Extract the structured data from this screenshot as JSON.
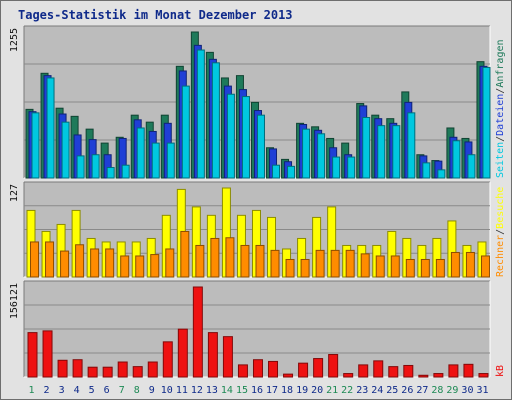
{
  "chart_data": {
    "type": "bar",
    "title": "Tages-Statistik im Monat Dezember 2013",
    "categories": [
      "1",
      "2",
      "3",
      "4",
      "5",
      "6",
      "7",
      "8",
      "9",
      "10",
      "11",
      "12",
      "13",
      "14",
      "15",
      "16",
      "17",
      "18",
      "19",
      "20",
      "21",
      "22",
      "23",
      "24",
      "25",
      "26",
      "27",
      "28",
      "29",
      "30",
      "31"
    ],
    "weekend_days": [
      "1",
      "7",
      "8",
      "14",
      "15",
      "21",
      "22",
      "28",
      "29"
    ],
    "colors": {
      "anfragen": "#1e7a5a",
      "dateien": "#1f3fd6",
      "seiten": "#00c8e0",
      "besuche": "#ffff00",
      "rechner": "#ff8c00",
      "kb": "#ee1111",
      "weekend_label": "#1e8a55",
      "weekday_label": "#0f2a8a",
      "plot_bg": "#bcbcbc",
      "gridline": "#8a8a8a"
    },
    "panels": [
      {
        "ymax_label": "1255",
        "ylim": [
          0,
          1255
        ],
        "series": [
          {
            "name": "Anfragen",
            "values": [
              590,
              900,
              600,
              530,
              420,
              300,
              350,
              540,
              480,
              540,
              960,
              1255,
              1080,
              860,
              880,
              650,
              260,
              160,
              470,
              440,
              340,
              300,
              640,
              540,
              510,
              740,
              200,
              150,
              430,
              340,
              1000
            ]
          },
          {
            "name": "Dateien",
            "values": [
              570,
              880,
              550,
              370,
              330,
              200,
              340,
              500,
              400,
              470,
              920,
              1140,
              1020,
              790,
              760,
              580,
              250,
              140,
              460,
              410,
              260,
              200,
              620,
              510,
              470,
              650,
              190,
              145,
              350,
              310,
              960
            ]
          },
          {
            "name": "Seiten",
            "values": [
              560,
              860,
              480,
              190,
              200,
              90,
              110,
              430,
              300,
              300,
              790,
              1100,
              990,
              720,
              700,
              540,
              110,
              100,
              420,
              380,
              180,
              180,
              520,
              450,
              450,
              560,
              130,
              70,
              320,
              200,
              950
            ]
          }
        ]
      },
      {
        "ymax_label": "127",
        "ylim": [
          0,
          127
        ],
        "series": [
          {
            "name": "Besuche",
            "values": [
              95,
              65,
              75,
              95,
              55,
              50,
              50,
              50,
              55,
              88,
              125,
              100,
              88,
              127,
              88,
              95,
              85,
              40,
              55,
              85,
              100,
              45,
              45,
              45,
              65,
              55,
              45,
              55,
              80,
              45,
              50
            ]
          },
          {
            "name": "Rechner",
            "values": [
              50,
              50,
              37,
              46,
              40,
              40,
              30,
              30,
              32,
              40,
              65,
              45,
              55,
              56,
              45,
              45,
              38,
              25,
              25,
              38,
              38,
              38,
              33,
              30,
              30,
              25,
              25,
              25,
              35,
              35,
              30
            ]
          }
        ]
      },
      {
        "ymax_label": "156121",
        "ylim": [
          0,
          156121
        ],
        "series": [
          {
            "name": "kB",
            "values": [
              77000,
              80000,
              29000,
              30000,
              17000,
              17000,
              26000,
              18000,
              26000,
              61000,
              83000,
              156121,
              77000,
              70000,
              21000,
              30000,
              27000,
              5000,
              24000,
              32000,
              39000,
              6000,
              21000,
              28000,
              18000,
              20000,
              3000,
              6000,
              21000,
              22000,
              6000
            ]
          }
        ]
      }
    ],
    "right_labels": {
      "top": [
        "Anfragen",
        "/",
        "Dateien",
        "/",
        "Seiten"
      ],
      "middle": [
        "Besuche",
        "/",
        "Rechner"
      ],
      "bottom": [
        "kB"
      ]
    }
  }
}
